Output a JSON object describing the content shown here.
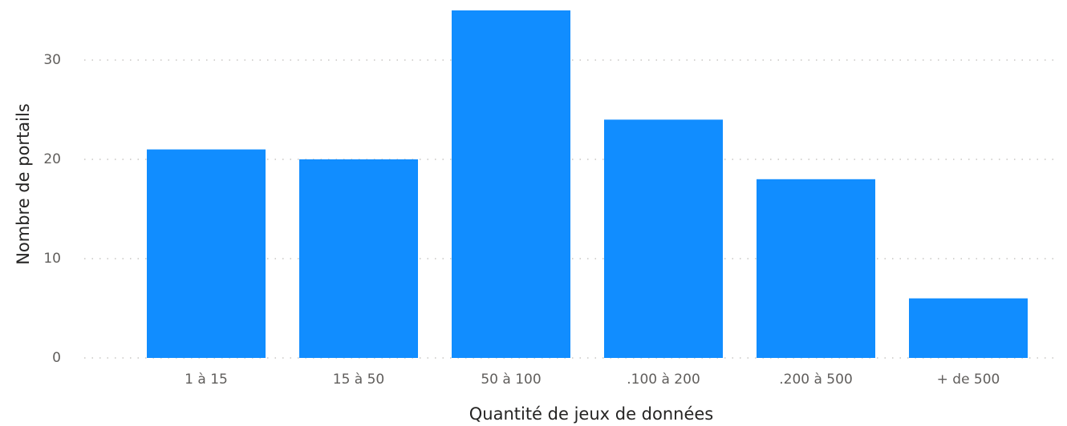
{
  "chart_data": {
    "type": "bar",
    "x_label": "Quantité de jeux de données",
    "y_label": "Nombre de portails",
    "categories": [
      "1 à 15",
      "15 à 50",
      "50 à 100",
      ".100 à 200",
      ".200 à 500",
      "+ de 500"
    ],
    "values": [
      21,
      20,
      35,
      24,
      18,
      6
    ],
    "color": "#118dff",
    "ylim": [
      0,
      35
    ],
    "yticks": [
      0,
      10,
      20,
      30
    ],
    "grid": true
  }
}
